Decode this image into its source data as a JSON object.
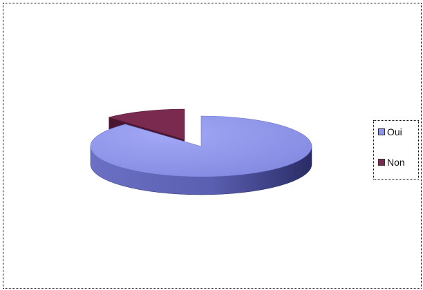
{
  "chart_data": {
    "type": "pie",
    "title": "",
    "categories": [
      "Oui",
      "Non"
    ],
    "values": [
      88,
      12
    ],
    "colors": [
      "#8f95e8",
      "#7a2a4e"
    ],
    "legend_position": "right",
    "style": "3d-exploded"
  },
  "legend": {
    "items": [
      {
        "label": "Oui",
        "color": "#8f95e8"
      },
      {
        "label": "Non",
        "color": "#7a2a4e"
      }
    ]
  }
}
